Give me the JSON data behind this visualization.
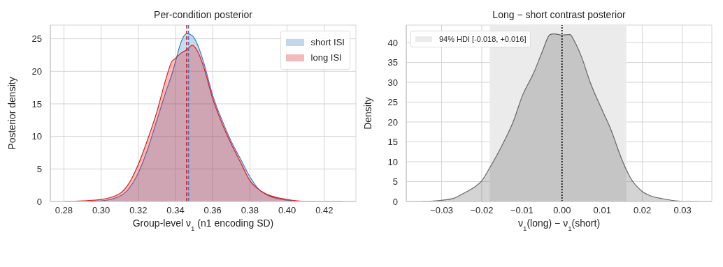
{
  "chart_data": [
    {
      "type": "area",
      "title": "Per-condition posterior",
      "xlabel": "Group-level ν$_{1}$ (n1 encoding SD)",
      "ylabel": "Posterior density",
      "x": [
        0.28,
        0.29,
        0.3,
        0.31,
        0.315,
        0.32,
        0.325,
        0.33,
        0.335,
        0.338,
        0.34,
        0.343,
        0.346,
        0.349,
        0.352,
        0.355,
        0.36,
        0.365,
        0.37,
        0.375,
        0.38,
        0.385,
        0.39,
        0.4,
        0.41,
        0.43
      ],
      "series": [
        {
          "name": "short ISI",
          "color": "#3a7dbf",
          "values": [
            0,
            0,
            0.1,
            0.8,
            2,
            4.4,
            8,
            12.5,
            17,
            19.5,
            21.5,
            24.5,
            25.8,
            25.5,
            24,
            21.5,
            16.3,
            12.5,
            9.2,
            6.5,
            3.8,
            1.8,
            0.9,
            0.2,
            0,
            0
          ]
        },
        {
          "name": "long ISI",
          "color": "#e41a1c",
          "values": [
            0,
            0.1,
            0.3,
            1.2,
            2.8,
            5.7,
            9.5,
            13.8,
            19,
            21.5,
            22,
            22.8,
            23.3,
            24,
            23,
            20.8,
            15.8,
            12,
            8.8,
            6,
            3.2,
            1.8,
            1.0,
            0.3,
            0,
            0
          ]
        }
      ],
      "xlim": [
        0.2727,
        0.437
      ],
      "xticks": [
        {
          "value": 0.28,
          "label": "0.28"
        },
        {
          "value": 0.3,
          "label": "0.30"
        },
        {
          "value": 0.32,
          "label": "0.32"
        },
        {
          "value": 0.34,
          "label": "0.34"
        },
        {
          "value": 0.36,
          "label": "0.36"
        },
        {
          "value": 0.38,
          "label": "0.38"
        },
        {
          "value": 0.4,
          "label": "0.40"
        },
        {
          "value": 0.42,
          "label": "0.42"
        }
      ],
      "ylim": [
        0,
        27.1
      ],
      "yticks": [
        0,
        5,
        10,
        15,
        20,
        25
      ],
      "grid": true,
      "legend": "top right",
      "ref_lines": [
        {
          "axis": "x",
          "value": 0.346,
          "color": "#e41a1c",
          "line_style": "dashed"
        },
        {
          "axis": "x",
          "value": 0.347,
          "color": "#3a7dbf",
          "line_style": "dashed"
        }
      ]
    },
    {
      "type": "area",
      "title": "Long − short contrast posterior",
      "xlabel": "ν$_{1}$(long) − ν$_{1}$(short)",
      "ylabel": "Density",
      "x": [
        -0.035,
        -0.03,
        -0.027,
        -0.025,
        -0.022,
        -0.02,
        -0.018,
        -0.015,
        -0.012,
        -0.01,
        -0.007,
        -0.005,
        -0.003,
        -0.002,
        0,
        0.002,
        0.003,
        0.005,
        0.007,
        0.01,
        0.012,
        0.015,
        0.017,
        0.02,
        0.023,
        0.025,
        0.028,
        0.03,
        0.034
      ],
      "series": [
        {
          "color": "#666666",
          "values": [
            0,
            0.3,
            0.8,
            1.8,
            3.5,
            5.2,
            8.5,
            14,
            20.5,
            26.3,
            32.5,
            37.5,
            42,
            42.2,
            41.9,
            42,
            40.5,
            36,
            30,
            23,
            18.5,
            10.3,
            6,
            2.5,
            1.1,
            0.7,
            0.2,
            0,
            0
          ]
        }
      ],
      "xlim": [
        -0.0388,
        0.0373
      ],
      "xticks": [
        {
          "value": -0.03,
          "label": "−0.03"
        },
        {
          "value": -0.02,
          "label": "−0.02"
        },
        {
          "value": -0.01,
          "label": "−0.01"
        },
        {
          "value": 0,
          "label": "0.00"
        },
        {
          "value": 0.01,
          "label": "0.01"
        },
        {
          "value": 0.02,
          "label": "0.02"
        },
        {
          "value": 0.03,
          "label": "0.03"
        }
      ],
      "ylim": [
        0,
        44.4
      ],
      "yticks": [
        0,
        5,
        10,
        15,
        20,
        25,
        30,
        35,
        40
      ],
      "grid": true,
      "legend": "top left",
      "bands": [
        {
          "axis": "x",
          "from": -0.018,
          "to": 0.016,
          "label": "94% HDI [-0.018, +0.016]",
          "color": "#ebebeb"
        }
      ],
      "ref_lines": [
        {
          "axis": "x",
          "value": 0,
          "color": "#000000",
          "line_style": "dotted"
        }
      ]
    }
  ]
}
